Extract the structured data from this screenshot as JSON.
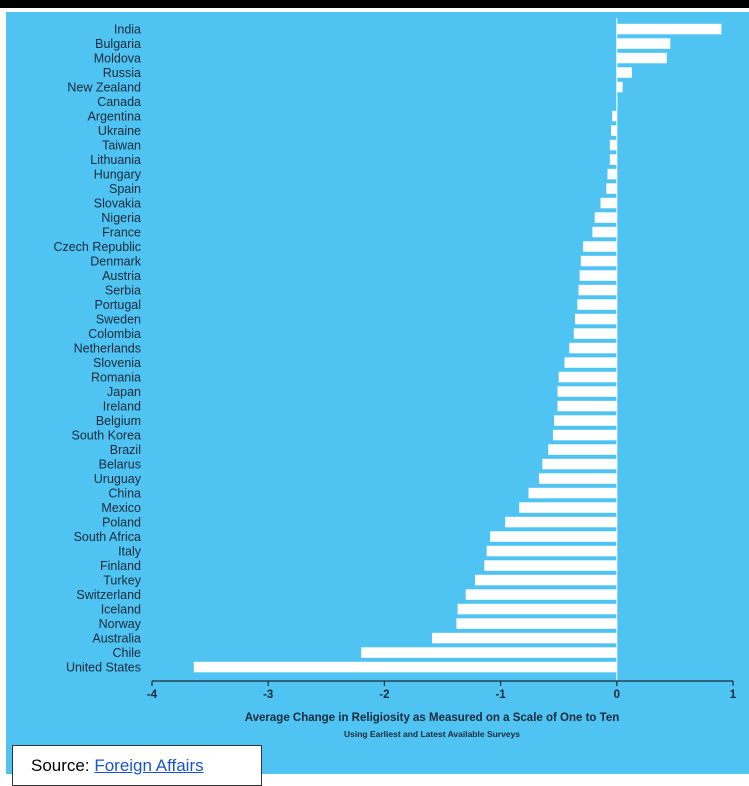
{
  "colors": {
    "background": "#4fc3f2",
    "bar": "#ffffff",
    "text": "#1b2a3a",
    "top_bar": "#000000"
  },
  "chart_data": {
    "type": "bar",
    "orientation": "horizontal",
    "xlabel": "Average Change in Religiosity as Measured on a Scale of One to Ten",
    "subtitle": "Using Earliest and Latest Available Surveys",
    "xlim": [
      -4,
      1
    ],
    "xticks": [
      "-4",
      "-3",
      "-2",
      "-1",
      "0",
      "1"
    ],
    "grid": false,
    "categories": [
      "India",
      "Bulgaria",
      "Moldova",
      "Russia",
      "New Zealand",
      "Canada",
      "Argentina",
      "Ukraine",
      "Taiwan",
      "Lithuania",
      "Hungary",
      "Spain",
      "Slovakia",
      "Nigeria",
      "France",
      "Czech Republic",
      "Denmark",
      "Austria",
      "Serbia",
      "Portugal",
      "Sweden",
      "Colombia",
      "Netherlands",
      "Slovenia",
      "Romania",
      "Japan",
      "Ireland",
      "Belgium",
      "South Korea",
      "Brazil",
      "Belarus",
      "Uruguay",
      "China",
      "Mexico",
      "Poland",
      "South Africa",
      "Italy",
      "Finland",
      "Turkey",
      "Switzerland",
      "Iceland",
      "Norway",
      "Australia",
      "Chile",
      "United States"
    ],
    "values": [
      0.9,
      0.46,
      0.43,
      0.13,
      0.05,
      0.0,
      -0.04,
      -0.05,
      -0.06,
      -0.06,
      -0.08,
      -0.09,
      -0.14,
      -0.19,
      -0.21,
      -0.29,
      -0.31,
      -0.32,
      -0.33,
      -0.34,
      -0.36,
      -0.37,
      -0.41,
      -0.45,
      -0.5,
      -0.51,
      -0.51,
      -0.54,
      -0.55,
      -0.59,
      -0.64,
      -0.67,
      -0.76,
      -0.84,
      -0.96,
      -1.09,
      -1.12,
      -1.14,
      -1.22,
      -1.3,
      -1.37,
      -1.38,
      -1.59,
      -2.2,
      -3.64
    ]
  },
  "source": {
    "label": "Source: ",
    "link_text": "Foreign Affairs"
  }
}
